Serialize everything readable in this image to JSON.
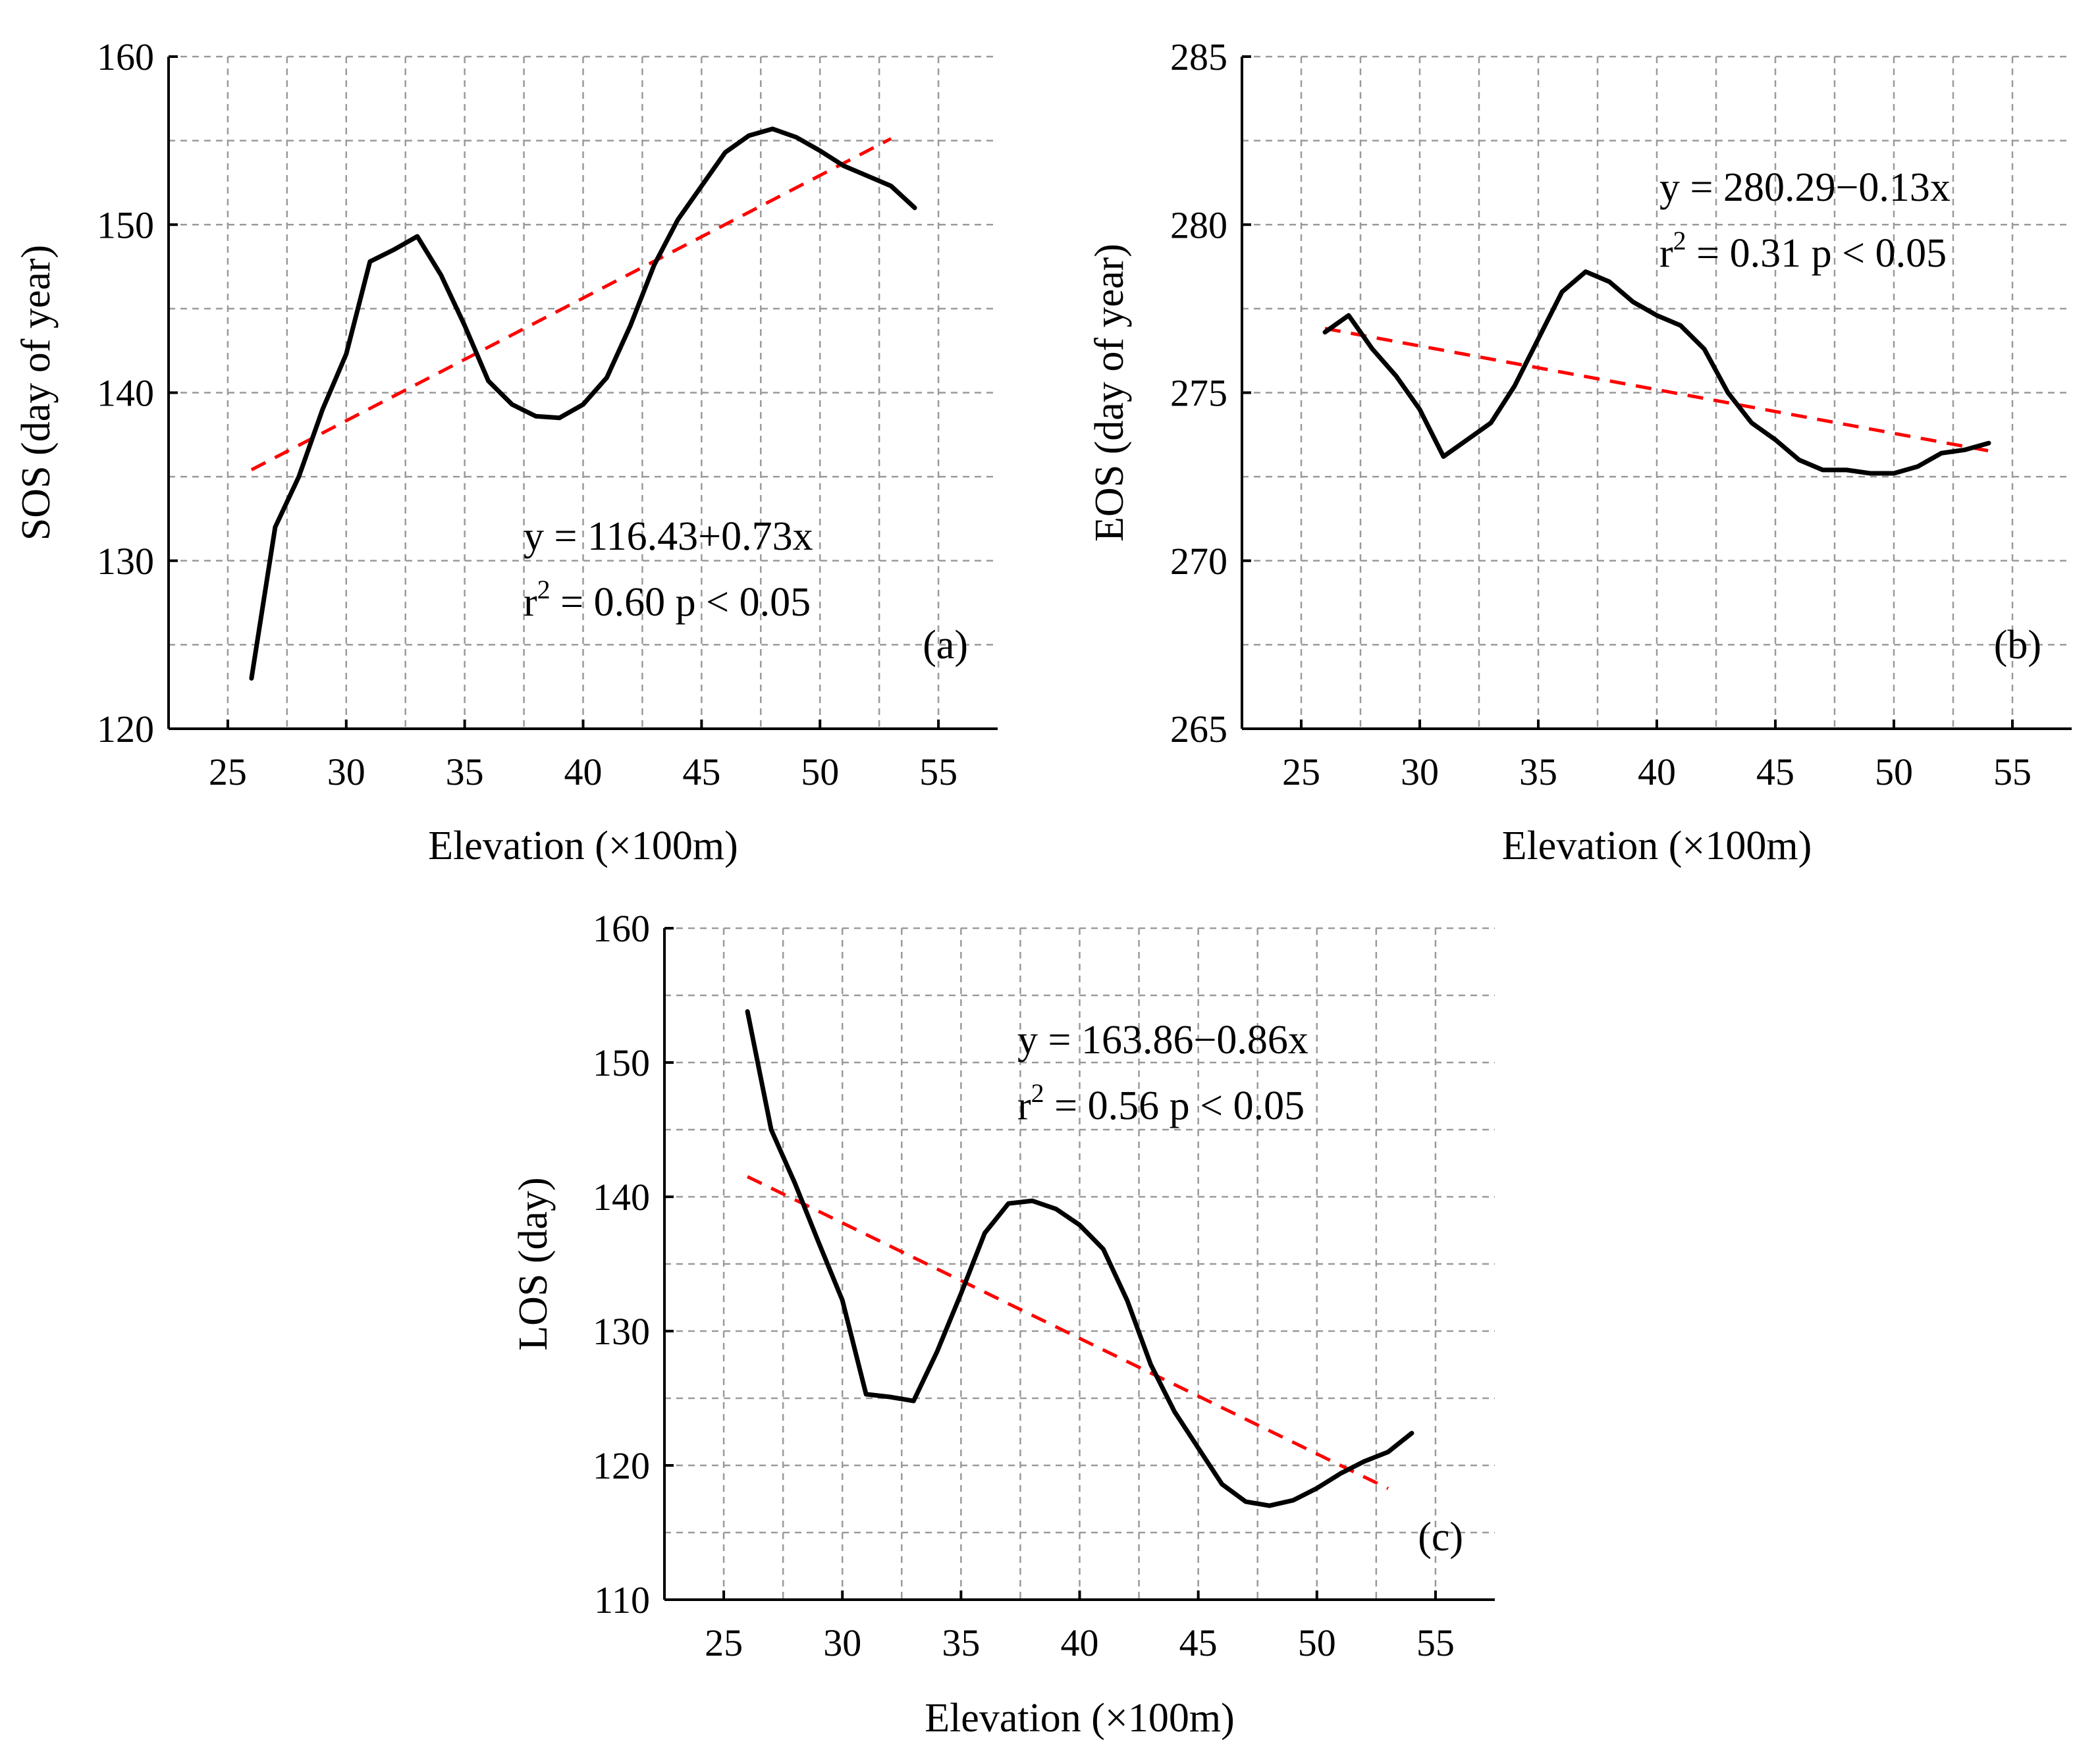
{
  "colors": {
    "data_line": "#000000",
    "fit_line": "#ff0000",
    "grid": "#9a9a9a"
  },
  "chart_data": [
    {
      "type": "line",
      "panel_label": "(a)",
      "title": "",
      "xlabel": "Elevation (×100m)",
      "ylabel": "SOS (day of year)",
      "xlim": [
        22.5,
        57.5
      ],
      "ylim": [
        120,
        160
      ],
      "xticks": [
        25,
        30,
        35,
        40,
        45,
        50,
        55
      ],
      "yticks": [
        120,
        130,
        140,
        150,
        160
      ],
      "grid": true,
      "x": [
        26,
        27,
        28,
        29,
        30,
        31,
        32,
        33,
        34,
        35,
        36,
        37,
        38,
        39,
        40,
        41,
        42,
        43,
        44,
        45,
        46,
        47,
        48,
        49,
        50,
        51,
        52,
        53,
        54
      ],
      "values": [
        123,
        132,
        135,
        139,
        142.3,
        147.8,
        148.5,
        149.3,
        147,
        144,
        140.7,
        139.3,
        138.6,
        138.5,
        139.3,
        140.9,
        144,
        147.6,
        150.3,
        152.3,
        154.3,
        155.3,
        155.7,
        155.2,
        154.4,
        153.5,
        152.9,
        152.3,
        151
      ],
      "series": [
        {
          "name": "SOS",
          "style": "solid"
        },
        {
          "name": "Linear fit",
          "style": "dashed"
        }
      ],
      "fit": {
        "intercept": 116.43,
        "slope": 0.73,
        "x_range": [
          26,
          53
        ]
      },
      "equation": "y = 116.43+0.73x",
      "r2_prefix": "r",
      "r2_exp": "2",
      "r2_rest": " = 0.60 p < 0.05"
    },
    {
      "type": "line",
      "panel_label": "(b)",
      "title": "",
      "xlabel": "Elevation (×100m)",
      "ylabel": "EOS (day of year)",
      "xlim": [
        22.5,
        57.5
      ],
      "ylim": [
        265,
        285
      ],
      "xticks": [
        25,
        30,
        35,
        40,
        45,
        50,
        55
      ],
      "yticks": [
        265,
        270,
        275,
        280,
        285
      ],
      "grid": true,
      "x": [
        26,
        27,
        28,
        29,
        30,
        31,
        32,
        33,
        34,
        35,
        36,
        37,
        38,
        39,
        40,
        41,
        42,
        43,
        44,
        45,
        46,
        47,
        48,
        49,
        50,
        51,
        52,
        53,
        54
      ],
      "values": [
        276.8,
        277.3,
        276.3,
        275.5,
        274.5,
        273.1,
        273.6,
        274.1,
        275.2,
        276.6,
        278,
        278.6,
        278.3,
        277.7,
        277.3,
        277,
        276.3,
        275,
        274.1,
        273.6,
        273,
        272.7,
        272.7,
        272.6,
        272.6,
        272.8,
        273.2,
        273.3,
        273.5
      ],
      "series": [
        {
          "name": "EOS",
          "style": "solid"
        },
        {
          "name": "Linear fit",
          "style": "dashed"
        }
      ],
      "fit": {
        "intercept": 280.29,
        "slope": -0.13,
        "x_range": [
          26,
          54
        ]
      },
      "equation": "y = 280.29−0.13x",
      "r2_prefix": "r",
      "r2_exp": "2",
      "r2_rest": " = 0.31 p < 0.05"
    },
    {
      "type": "line",
      "panel_label": "(c)",
      "title": "",
      "xlabel": "Elevation (×100m)",
      "ylabel": "LOS (day)",
      "xlim": [
        22.5,
        57.5
      ],
      "ylim": [
        110,
        160
      ],
      "xticks": [
        25,
        30,
        35,
        40,
        45,
        50,
        55
      ],
      "yticks": [
        110,
        120,
        130,
        140,
        150,
        160
      ],
      "grid": true,
      "x": [
        26,
        27,
        28,
        29,
        30,
        31,
        32,
        33,
        34,
        35,
        36,
        37,
        38,
        39,
        40,
        41,
        42,
        43,
        44,
        45,
        46,
        47,
        48,
        49,
        50,
        51,
        52,
        53,
        54
      ],
      "values": [
        153.8,
        145,
        141,
        136.6,
        132.3,
        125.3,
        125.1,
        124.8,
        128.5,
        132.8,
        137.3,
        139.5,
        139.7,
        139.1,
        137.9,
        136.1,
        132.3,
        127.5,
        124,
        121.3,
        118.6,
        117.3,
        117,
        117.4,
        118.3,
        119.4,
        120.3,
        121,
        122.4
      ],
      "series": [
        {
          "name": "LOS",
          "style": "solid"
        },
        {
          "name": "Linear fit",
          "style": "dashed"
        }
      ],
      "fit": {
        "intercept": 163.86,
        "slope": -0.86,
        "x_range": [
          26,
          53
        ]
      },
      "equation": "y = 163.86−0.86x",
      "r2_prefix": "r",
      "r2_exp": "2",
      "r2_rest": " = 0.56 p < 0.05"
    }
  ]
}
